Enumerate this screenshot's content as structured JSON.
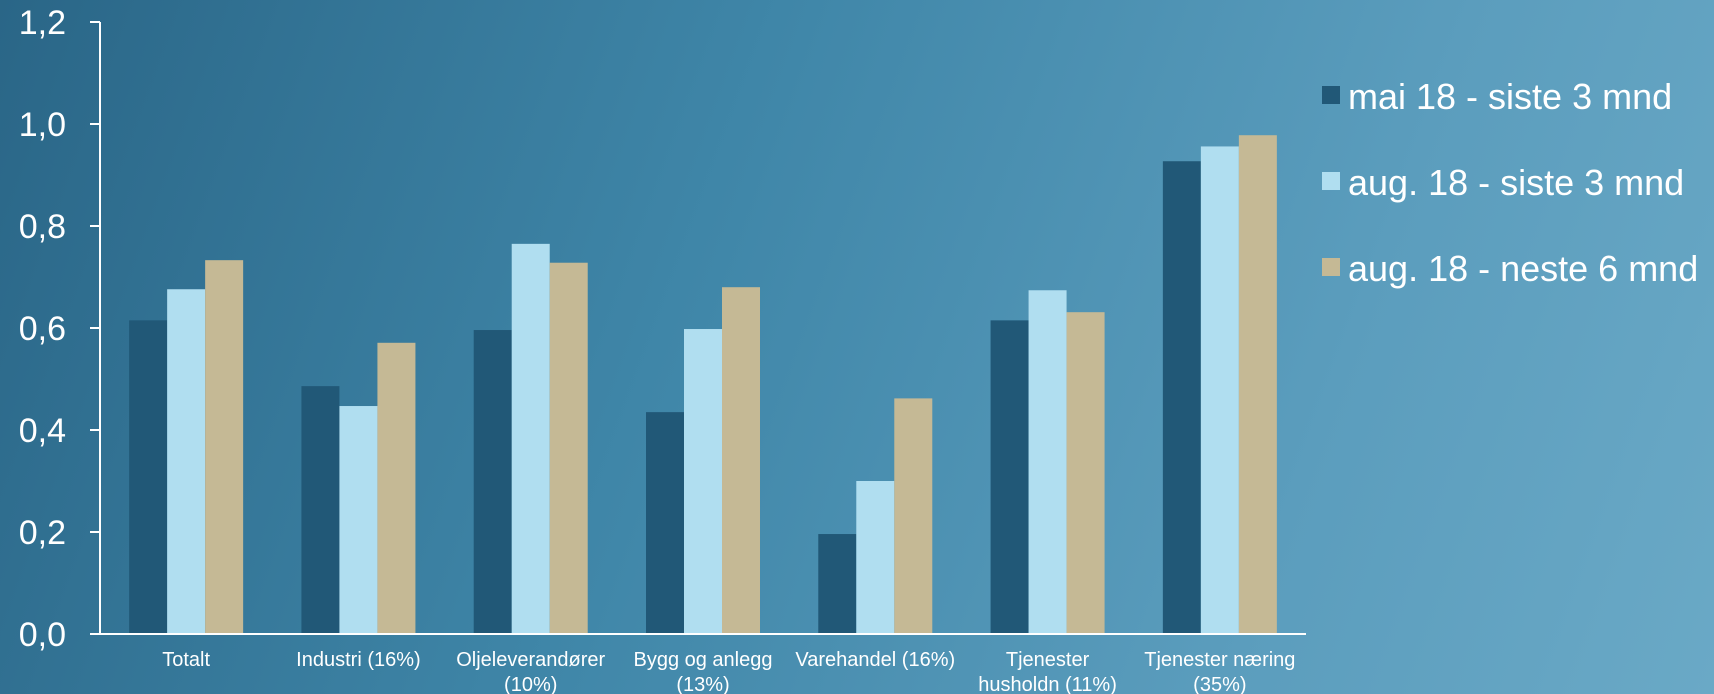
{
  "chart_data": {
    "type": "bar",
    "categories": [
      [
        "Totalt"
      ],
      [
        "Industri (16%)"
      ],
      [
        "Oljeleverandører",
        "(10%)"
      ],
      [
        "Bygg og anlegg",
        "(13%)"
      ],
      [
        "Varehandel (16%)"
      ],
      [
        "Tjenester",
        "husholdn (11%)"
      ],
      [
        "Tjenester næring",
        "(35%)"
      ]
    ],
    "series": [
      {
        "name": "mai 18 - siste 3 mnd",
        "color": "#215877",
        "values": [
          0.615,
          0.486,
          0.596,
          0.435,
          0.196,
          0.615,
          0.927
        ]
      },
      {
        "name": "aug. 18 - siste 3 mnd",
        "color": "#b0def0",
        "values": [
          0.676,
          0.447,
          0.765,
          0.598,
          0.3,
          0.674,
          0.956
        ]
      },
      {
        "name": "aug. 18 - neste 6 mnd",
        "color": "#c5b995",
        "values": [
          0.733,
          0.571,
          0.728,
          0.68,
          0.462,
          0.631,
          0.978
        ]
      }
    ],
    "yticks": [
      "0,0",
      "0,2",
      "0,4",
      "0,6",
      "0,8",
      "1,0",
      "1,2"
    ],
    "ylim": [
      0,
      1.2
    ],
    "legend_position": "right",
    "grid": false
  }
}
